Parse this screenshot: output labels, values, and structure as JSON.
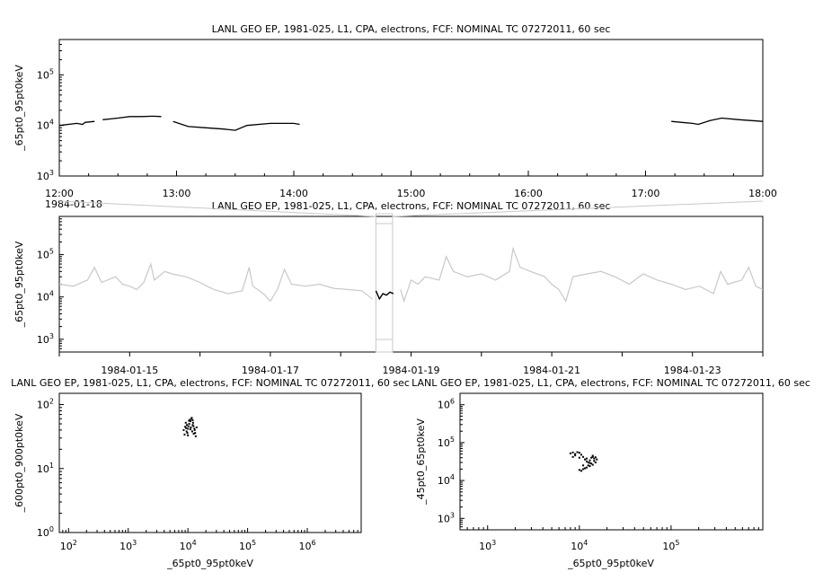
{
  "chart_data": [
    {
      "id": "p1",
      "type": "line",
      "title": "LANL GEO EP, 1981-025, L1, CPA, electrons, FCF: NOMINAL TC 07272011, 60 sec",
      "ylabel": "_65pt0_95pt0keV",
      "xlabel": "",
      "yscale": "log",
      "ylim": [
        1000,
        500000
      ],
      "xlim": [
        12.0,
        18.0
      ],
      "x_unit": "hours UT, 1984-01-18",
      "x_ticks": [
        "12:00",
        "13:00",
        "14:00",
        "15:00",
        "16:00",
        "17:00",
        "18:00"
      ],
      "x_tick_values": [
        12,
        13,
        14,
        15,
        16,
        17,
        18
      ],
      "date_label": "1984-01-18",
      "y_ticks": [
        1000,
        10000,
        100000
      ],
      "y_tick_labels": [
        {
          "base": "10",
          "exp": "3"
        },
        {
          "base": "10",
          "exp": "4"
        },
        {
          "base": "10",
          "exp": "5"
        }
      ],
      "color": "#000000",
      "segments": [
        [
          [
            12.0,
            10000
          ],
          [
            12.15,
            11000
          ],
          [
            12.2,
            10500
          ],
          [
            12.22,
            11500
          ],
          [
            12.3,
            12000
          ]
        ],
        [
          [
            12.37,
            13000
          ],
          [
            12.5,
            14000
          ],
          [
            12.6,
            15000
          ],
          [
            12.7,
            15000
          ],
          [
            12.8,
            15200
          ],
          [
            12.87,
            15000
          ]
        ],
        [
          [
            12.97,
            12000
          ],
          [
            13.1,
            9500
          ],
          [
            13.25,
            9000
          ],
          [
            13.4,
            8500
          ],
          [
            13.5,
            8000
          ],
          [
            13.6,
            10000
          ],
          [
            13.8,
            11000
          ],
          [
            14.0,
            11000
          ],
          [
            14.05,
            10500
          ]
        ],
        [
          [
            17.22,
            12000
          ],
          [
            17.4,
            11000
          ],
          [
            17.45,
            10500
          ],
          [
            17.55,
            12500
          ],
          [
            17.65,
            14000
          ],
          [
            17.8,
            13000
          ],
          [
            18.0,
            12000
          ]
        ]
      ]
    },
    {
      "id": "p2",
      "type": "line",
      "title": "LANL GEO EP, 1981-025, L1, CPA, electrons, FCF: NOMINAL TC 07272011, 60 sec",
      "ylabel": "_65pt0_95pt0keV",
      "xlabel": "",
      "yscale": "log",
      "ylim": [
        500,
        800000
      ],
      "x_unit": "days since 1984-01-14 00:00",
      "xlim": [
        0.0,
        10.0
      ],
      "x_ticks": [
        "1984-01-15",
        "1984-01-17",
        "1984-01-19",
        "1984-01-21",
        "1984-01-23"
      ],
      "x_tick_values": [
        1,
        3,
        5,
        7,
        9
      ],
      "y_ticks": [
        1000,
        10000,
        100000
      ],
      "y_tick_labels": [
        {
          "base": "10",
          "exp": "3"
        },
        {
          "base": "10",
          "exp": "4"
        },
        {
          "base": "10",
          "exp": "5"
        }
      ],
      "highlight_range": [
        4.5,
        4.75
      ],
      "context_color": "#c8c8c8",
      "highlight_color": "#000000",
      "values": [
        [
          0.0,
          20000
        ],
        [
          0.2,
          18000
        ],
        [
          0.4,
          25000
        ],
        [
          0.5,
          50000
        ],
        [
          0.6,
          22000
        ],
        [
          0.8,
          30000
        ],
        [
          0.9,
          20000
        ],
        [
          1.0,
          18000
        ],
        [
          1.1,
          15000
        ],
        [
          1.2,
          22000
        ],
        [
          1.3,
          60000
        ],
        [
          1.35,
          25000
        ],
        [
          1.5,
          40000
        ],
        [
          1.6,
          35000
        ],
        [
          1.8,
          30000
        ],
        [
          2.0,
          22000
        ],
        [
          2.1,
          18000
        ],
        [
          2.2,
          15000
        ],
        [
          2.4,
          12000
        ],
        [
          2.6,
          14000
        ],
        [
          2.7,
          50000
        ],
        [
          2.75,
          18000
        ],
        [
          2.9,
          12000
        ],
        [
          3.0,
          8000
        ],
        [
          3.1,
          15000
        ],
        [
          3.2,
          45000
        ],
        [
          3.3,
          20000
        ],
        [
          3.5,
          18000
        ],
        [
          3.7,
          20000
        ],
        [
          3.9,
          16000
        ],
        [
          4.1,
          15000
        ],
        [
          4.3,
          14000
        ],
        [
          4.45,
          9000
        ],
        [
          4.5,
          14000
        ],
        [
          4.55,
          9000
        ],
        [
          4.6,
          12000
        ],
        [
          4.65,
          11000
        ],
        [
          4.7,
          13000
        ],
        [
          4.75,
          12000
        ],
        [
          4.85,
          15000
        ],
        [
          4.9,
          8000
        ],
        [
          5.0,
          25000
        ],
        [
          5.1,
          20000
        ],
        [
          5.2,
          30000
        ],
        [
          5.4,
          25000
        ],
        [
          5.5,
          90000
        ],
        [
          5.6,
          40000
        ],
        [
          5.8,
          30000
        ],
        [
          6.0,
          35000
        ],
        [
          6.2,
          25000
        ],
        [
          6.4,
          40000
        ],
        [
          6.45,
          140000
        ],
        [
          6.55,
          50000
        ],
        [
          6.7,
          40000
        ],
        [
          6.9,
          30000
        ],
        [
          7.0,
          20000
        ],
        [
          7.1,
          15000
        ],
        [
          7.2,
          8000
        ],
        [
          7.3,
          30000
        ],
        [
          7.5,
          35000
        ],
        [
          7.7,
          40000
        ],
        [
          7.9,
          30000
        ],
        [
          8.1,
          20000
        ],
        [
          8.3,
          35000
        ],
        [
          8.5,
          25000
        ],
        [
          8.7,
          20000
        ],
        [
          8.9,
          15000
        ],
        [
          9.1,
          18000
        ],
        [
          9.3,
          12000
        ],
        [
          9.4,
          40000
        ],
        [
          9.5,
          20000
        ],
        [
          9.7,
          25000
        ],
        [
          9.8,
          50000
        ],
        [
          9.9,
          18000
        ],
        [
          10.0,
          15000
        ]
      ]
    },
    {
      "id": "p3",
      "type": "scatter",
      "title": "LANL GEO EP, 1981-025, L1, CPA, electrons, FCF: NOMINAL TC 07272011, 60 sec",
      "xlabel": "_65pt0_95pt0keV",
      "ylabel": "_600pt0_900pt0keV",
      "xscale": "log",
      "yscale": "log",
      "xlim": [
        70,
        8000000
      ],
      "ylim": [
        1,
        150
      ],
      "x_ticks": [
        100,
        1000,
        10000,
        100000,
        1000000
      ],
      "x_tick_labels": [
        {
          "base": "10",
          "exp": "2"
        },
        {
          "base": "10",
          "exp": "3"
        },
        {
          "base": "10",
          "exp": "4"
        },
        {
          "base": "10",
          "exp": "5"
        },
        {
          "base": "10",
          "exp": "6"
        }
      ],
      "y_ticks": [
        1,
        10,
        100
      ],
      "y_tick_labels": [
        {
          "base": "10",
          "exp": "0"
        },
        {
          "base": "10",
          "exp": "1"
        },
        {
          "base": "10",
          "exp": "2"
        }
      ],
      "color": "#000000",
      "cluster": {
        "x_range": [
          8000,
          15000
        ],
        "y_range": [
          30,
          65
        ]
      },
      "points": [
        [
          8500,
          40
        ],
        [
          9000,
          45
        ],
        [
          9500,
          38
        ],
        [
          10000,
          42
        ],
        [
          10500,
          50
        ],
        [
          11000,
          55
        ],
        [
          11500,
          60
        ],
        [
          12000,
          48
        ],
        [
          12500,
          35
        ],
        [
          13000,
          40
        ],
        [
          13500,
          32
        ],
        [
          9200,
          52
        ],
        [
          9800,
          36
        ],
        [
          10200,
          46
        ],
        [
          10800,
          58
        ],
        [
          11200,
          44
        ],
        [
          11800,
          38
        ],
        [
          12200,
          52
        ],
        [
          12800,
          42
        ],
        [
          8800,
          34
        ],
        [
          9600,
          48
        ],
        [
          10400,
          56
        ],
        [
          11600,
          62
        ],
        [
          12400,
          46
        ],
        [
          13200,
          36
        ],
        [
          14000,
          44
        ],
        [
          10000,
          33
        ],
        [
          11000,
          41
        ],
        [
          12000,
          57
        ],
        [
          9300,
          43
        ]
      ]
    },
    {
      "id": "p4",
      "type": "scatter",
      "title": "LANL GEO EP, 1981-025, L1, CPA, electrons, FCF: NOMINAL TC 07272011, 60 sec",
      "xlabel": "_65pt0_95pt0keV",
      "ylabel": "_45pt0_65pt0keV",
      "xscale": "log",
      "yscale": "log",
      "xlim": [
        500,
        1000000
      ],
      "ylim": [
        500,
        2000000
      ],
      "x_ticks": [
        1000,
        10000,
        100000
      ],
      "x_tick_labels": [
        {
          "base": "10",
          "exp": "3"
        },
        {
          "base": "10",
          "exp": "4"
        },
        {
          "base": "10",
          "exp": "5"
        }
      ],
      "y_ticks": [
        1000,
        10000,
        100000,
        1000000
      ],
      "y_tick_labels": [
        {
          "base": "10",
          "exp": "3"
        },
        {
          "base": "10",
          "exp": "4"
        },
        {
          "base": "10",
          "exp": "5"
        },
        {
          "base": "10",
          "exp": "6"
        }
      ],
      "color": "#000000",
      "points": [
        [
          8000,
          52000
        ],
        [
          8500,
          55000
        ],
        [
          9000,
          50000
        ],
        [
          9500,
          56000
        ],
        [
          10000,
          54000
        ],
        [
          10500,
          48000
        ],
        [
          11000,
          42000
        ],
        [
          11500,
          36000
        ],
        [
          12000,
          32000
        ],
        [
          12500,
          30000
        ],
        [
          13000,
          34000
        ],
        [
          13500,
          40000
        ],
        [
          14000,
          45000
        ],
        [
          14500,
          38000
        ],
        [
          15000,
          30000
        ],
        [
          14000,
          26000
        ],
        [
          13000,
          24000
        ],
        [
          12000,
          22000
        ],
        [
          11000,
          20000
        ],
        [
          10500,
          18000
        ],
        [
          11500,
          21000
        ],
        [
          12500,
          25000
        ],
        [
          13500,
          28000
        ],
        [
          14500,
          33000
        ],
        [
          15500,
          36000
        ],
        [
          9000,
          46000
        ],
        [
          8500,
          42000
        ],
        [
          10000,
          40000
        ],
        [
          12000,
          38000
        ],
        [
          13000,
          29000
        ],
        [
          11000,
          25000
        ],
        [
          10000,
          19000
        ],
        [
          14000,
          42000
        ],
        [
          15000,
          41000
        ]
      ]
    }
  ]
}
